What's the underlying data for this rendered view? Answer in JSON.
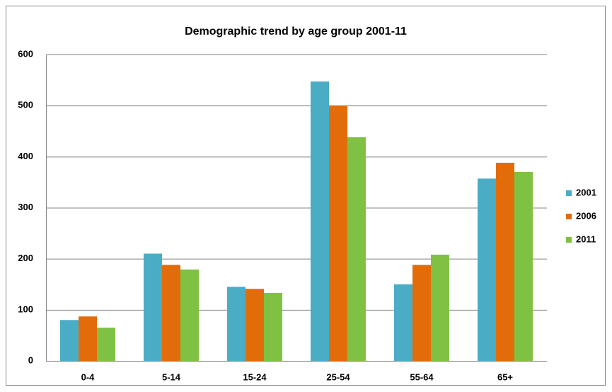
{
  "chart_data": {
    "type": "bar",
    "title": "Demographic trend by age group 2001-11",
    "categories": [
      "0-4",
      "5-14",
      "15-24",
      "25-54",
      "55-64",
      "65+"
    ],
    "series": [
      {
        "name": "2001",
        "color": "#4bacc6",
        "values": [
          80,
          210,
          145,
          547,
          150,
          357
        ]
      },
      {
        "name": "2006",
        "color": "#e36c0a",
        "values": [
          87,
          188,
          141,
          500,
          188,
          388
        ]
      },
      {
        "name": "2011",
        "color": "#7fc243",
        "values": [
          65,
          179,
          133,
          438,
          208,
          370
        ]
      }
    ],
    "ylim": [
      0,
      600
    ],
    "yticks": [
      0,
      100,
      200,
      300,
      400,
      500,
      600
    ],
    "grid": true,
    "legend": "right"
  }
}
